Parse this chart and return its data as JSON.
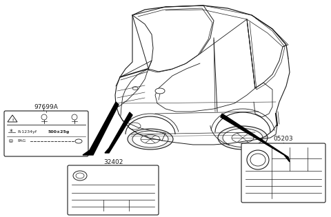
{
  "bg_color": "#ffffff",
  "lc": "#1a1a1a",
  "label_97699A": "97699A",
  "label_32402": "32402",
  "label_05203": "05203",
  "fig_w": 4.8,
  "fig_h": 3.15,
  "dpi": 100
}
